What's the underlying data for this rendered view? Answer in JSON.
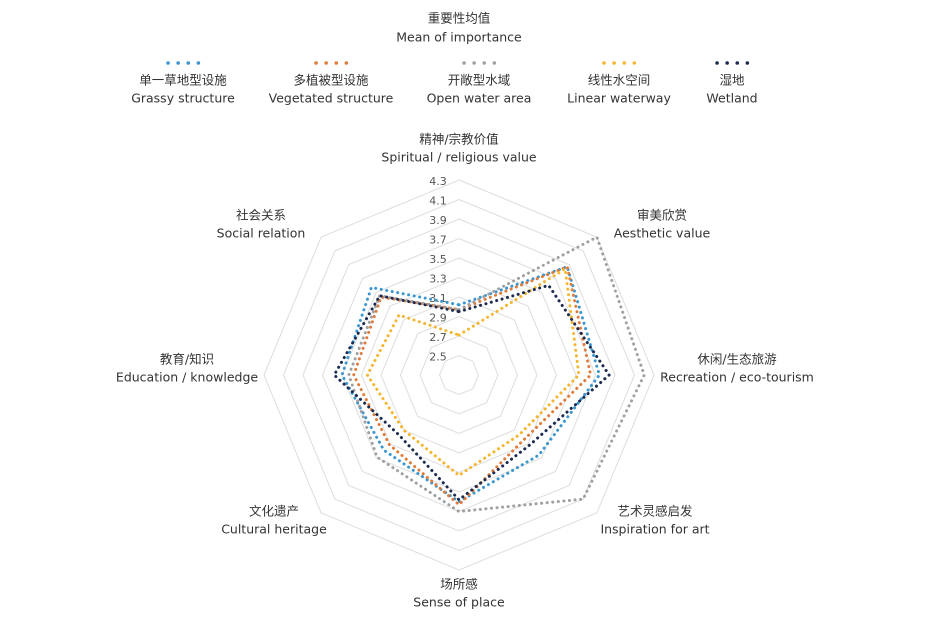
{
  "chart_data": {
    "type": "radar",
    "title": "重要性均值",
    "subtitle": "Mean of importance",
    "categories_zh": [
      "精神/宗教价值",
      "审美欣赏",
      "休闲/生态旅游",
      "艺术灵感启发",
      "场所感",
      "文化遗产",
      "教育/知识",
      "社会关系"
    ],
    "categories": [
      "Spiritual / religious value",
      "Aesthetic value",
      "Recreation / eco-tourism",
      "Inspiration for art",
      "Sense of place",
      "Cultural heritage",
      "Education / knowledge",
      "Social relation"
    ],
    "rlim": [
      2.3,
      4.3
    ],
    "rticks": [
      2.5,
      2.7,
      2.9,
      3.1,
      3.3,
      3.5,
      3.7,
      3.9,
      4.1,
      4.3
    ],
    "series": [
      {
        "name": "单一草地型设施",
        "name_en": "Grassy structure",
        "color": "#3a96cf",
        "values": [
          3.02,
          3.87,
          3.74,
          3.46,
          3.6,
          3.39,
          3.5,
          3.57
        ]
      },
      {
        "name": "多植被型设施",
        "name_en": "Vegetated structure",
        "color": "#e07b39",
        "values": [
          2.97,
          3.87,
          3.65,
          3.24,
          3.63,
          3.31,
          3.38,
          3.43
        ]
      },
      {
        "name": "开敞型水域",
        "name_en": "Open water area",
        "color": "#a0a0a0",
        "values": [
          2.97,
          4.3,
          4.2,
          4.1,
          3.7,
          3.49,
          3.43,
          3.45
        ]
      },
      {
        "name": "线性水空间",
        "name_en": "Linear waterway",
        "color": "#f5b52e",
        "values": [
          2.71,
          3.84,
          3.53,
          3.17,
          3.33,
          3.1,
          3.24,
          3.17
        ]
      },
      {
        "name": "湿地",
        "name_en": "Wetland",
        "color": "#1c2b4f",
        "values": [
          2.95,
          3.6,
          3.84,
          3.32,
          3.58,
          3.17,
          3.58,
          3.45
        ]
      }
    ]
  }
}
